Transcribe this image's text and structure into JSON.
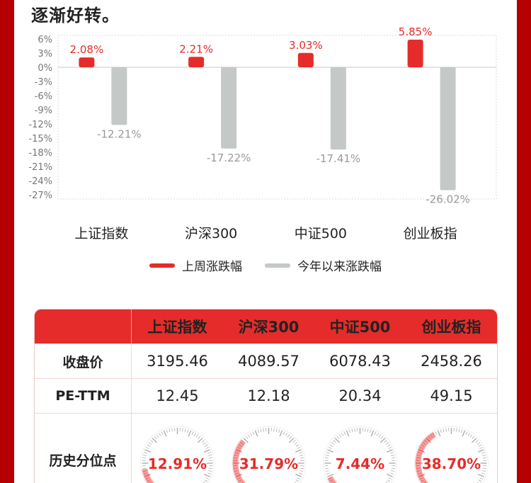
{
  "intro_text": "逐渐好转。",
  "chart_data": {
    "type": "bar",
    "categories": [
      "上证指数",
      "沪深300",
      "中证500",
      "创业板指"
    ],
    "series": [
      {
        "name": "上周涨跌幅",
        "values": [
          2.08,
          2.21,
          3.03,
          5.85
        ],
        "labels": [
          "2.08%",
          "2.21%",
          "3.03%",
          "5.85%"
        ],
        "color": "#e52c2a"
      },
      {
        "name": "今年以来涨跌幅",
        "values": [
          -12.21,
          -17.22,
          -17.41,
          -26.02
        ],
        "labels": [
          "-12.21%",
          "-17.22%",
          "-17.41%",
          "-26.02%"
        ],
        "color": "#c4c8c6"
      }
    ],
    "ylim": [
      -27,
      6
    ],
    "yticks": [
      6,
      3,
      0,
      -3,
      -6,
      -9,
      -12,
      -15,
      -18,
      -21,
      -24,
      -27
    ],
    "ytick_labels": [
      "6%",
      "3%",
      "0%",
      "-3%",
      "-6%",
      "-9%",
      "-12%",
      "-15%",
      "-18%",
      "-21%",
      "-24%",
      "-27%"
    ],
    "legend_position": "bottom",
    "grid": false
  },
  "table": {
    "headers": [
      "上证指数",
      "沪深300",
      "中证500",
      "创业板指"
    ],
    "rows": [
      {
        "label": "收盘价",
        "values": [
          "3195.46",
          "4089.57",
          "6078.43",
          "2458.26"
        ]
      },
      {
        "label": "PE-TTM",
        "values": [
          "12.45",
          "12.18",
          "20.34",
          "49.15"
        ]
      }
    ],
    "percentile_row": {
      "label": "历史分位点",
      "values": [
        "12.91%",
        "31.79%",
        "7.44%",
        "38.70%"
      ],
      "fractions": [
        0.1291,
        0.3179,
        0.0744,
        0.387
      ],
      "scale_min": "0%",
      "scale_max": "100%"
    }
  },
  "colors": {
    "accent": "#e52c2a",
    "gray_bar": "#c4c8c6",
    "frame": "#b60000"
  }
}
